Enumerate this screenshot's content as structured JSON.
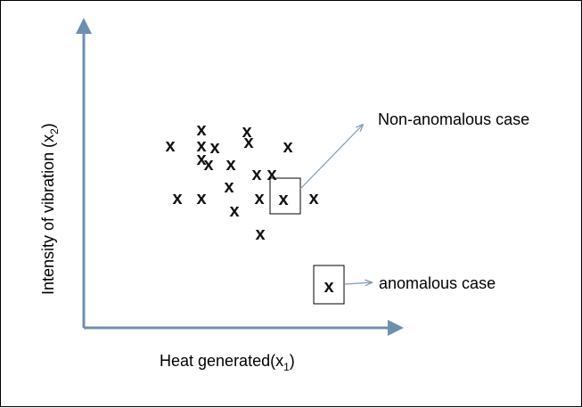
{
  "figure": {
    "xlabel": "Heat generated(x",
    "xlabel_sub": "1",
    "xlabel_close": ")",
    "ylabel": "Intensity of vibration (x",
    "ylabel_sub": "2",
    "ylabel_close": ")",
    "point_glyph": "x",
    "normal_label": "Non-anomalous case",
    "anomalous_label": "anomalous case",
    "axis_color": "#6f8fb0",
    "arrow_color": "#7f9ab5",
    "mark_color": "#111111"
  },
  "chart_data": {
    "type": "scatter",
    "xlabel": "Heat generated(x1)",
    "ylabel": "Intensity of vibration (x2)",
    "grid": false,
    "series": [
      {
        "name": "Non-anomalous case",
        "points": [
          [
            225,
            313
          ],
          [
            276,
            311
          ],
          [
            225,
            295
          ],
          [
            278,
            299
          ],
          [
            190,
            295
          ],
          [
            240,
            293
          ],
          [
            322,
            294
          ],
          [
            225,
            280
          ],
          [
            233,
            274
          ],
          [
            258,
            274
          ],
          [
            287,
            263
          ],
          [
            304,
            263
          ],
          [
            256,
            249
          ],
          [
            198,
            236
          ],
          [
            225,
            236
          ],
          [
            290,
            236
          ],
          [
            317,
            235
          ],
          [
            351,
            236
          ],
          [
            262,
            222
          ],
          [
            291,
            196
          ]
        ]
      },
      {
        "name": "anomalous case",
        "points": [
          [
            368,
            137
          ]
        ]
      }
    ]
  }
}
